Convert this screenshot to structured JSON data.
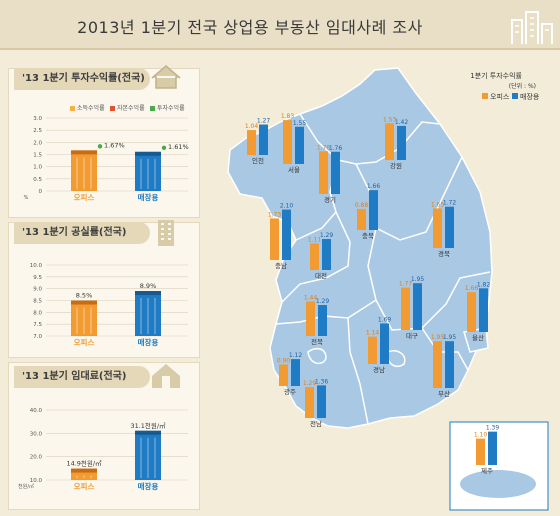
{
  "title": "2013년 1분기 전국 상업용 부동산 임대사례 조사",
  "colors": {
    "office": "#f29b33",
    "retail": "#1f7bc3",
    "map": "#a9c8e4",
    "map_border": "#ffffff",
    "panel_tab": "#e4d8b8"
  },
  "chart_data": [
    {
      "type": "bar",
      "title": "'13 1분기 투자수익률(전국)",
      "legend": [
        "소득수익률",
        "자본수익률",
        "투자수익률"
      ],
      "categories": [
        "오피스",
        "매장용"
      ],
      "values": [
        1.67,
        1.61
      ],
      "value_labels": [
        "1.67%",
        "1.61%"
      ],
      "yticks": [
        "3.0",
        "2.5",
        "2.0",
        "1.5",
        "1.0",
        "0.5",
        "0"
      ],
      "ylim": [
        0,
        3.0
      ],
      "yunit": "%"
    },
    {
      "type": "bar",
      "title": "'13 1분기 공실률(전국)",
      "categories": [
        "오피스",
        "매장용"
      ],
      "values": [
        8.5,
        8.9
      ],
      "value_labels": [
        "8.5%",
        "8.9%"
      ],
      "yticks": [
        "10.0",
        "9.5",
        "9.0",
        "8.5",
        "8.0",
        "7.5",
        "7.0"
      ],
      "ylim": [
        7.0,
        10.0
      ]
    },
    {
      "type": "bar",
      "title": "'13 1분기 임대료(전국)",
      "categories": [
        "오피스",
        "매장용"
      ],
      "values": [
        14.9,
        31.1
      ],
      "value_labels": [
        "14.9천원/㎡",
        "31.1천원/㎡"
      ],
      "yticks": [
        "40.0",
        "30.0",
        "20.0",
        "10.0"
      ],
      "ylim": [
        10.0,
        40.0
      ],
      "yunit": "천원/㎡"
    },
    {
      "type": "bar",
      "title": "1분기 투자수익률",
      "unit_note": "(단위 : %)",
      "legend": [
        "오피스",
        "매장용"
      ],
      "series": [
        {
          "name": "오피스",
          "values": [
            1.04,
            1.83,
            1.78,
            1.53,
            0.88,
            1.73,
            1.11,
            1.65,
            1.77,
            1.44,
            1.14,
            1.66,
            1.95,
            0.9,
            1.29,
            1.1
          ]
        },
        {
          "name": "매장용",
          "values": [
            1.27,
            1.55,
            1.76,
            1.42,
            1.66,
            2.1,
            1.29,
            1.72,
            1.95,
            1.29,
            1.69,
            1.82,
            1.95,
            1.12,
            1.36,
            1.39
          ]
        }
      ],
      "categories": [
        "인천",
        "서울",
        "경기",
        "강원",
        "충북",
        "충남",
        "대전",
        "경북",
        "대구",
        "전북",
        "경남",
        "울산",
        "부산",
        "광주",
        "전남",
        "제주"
      ]
    }
  ]
}
